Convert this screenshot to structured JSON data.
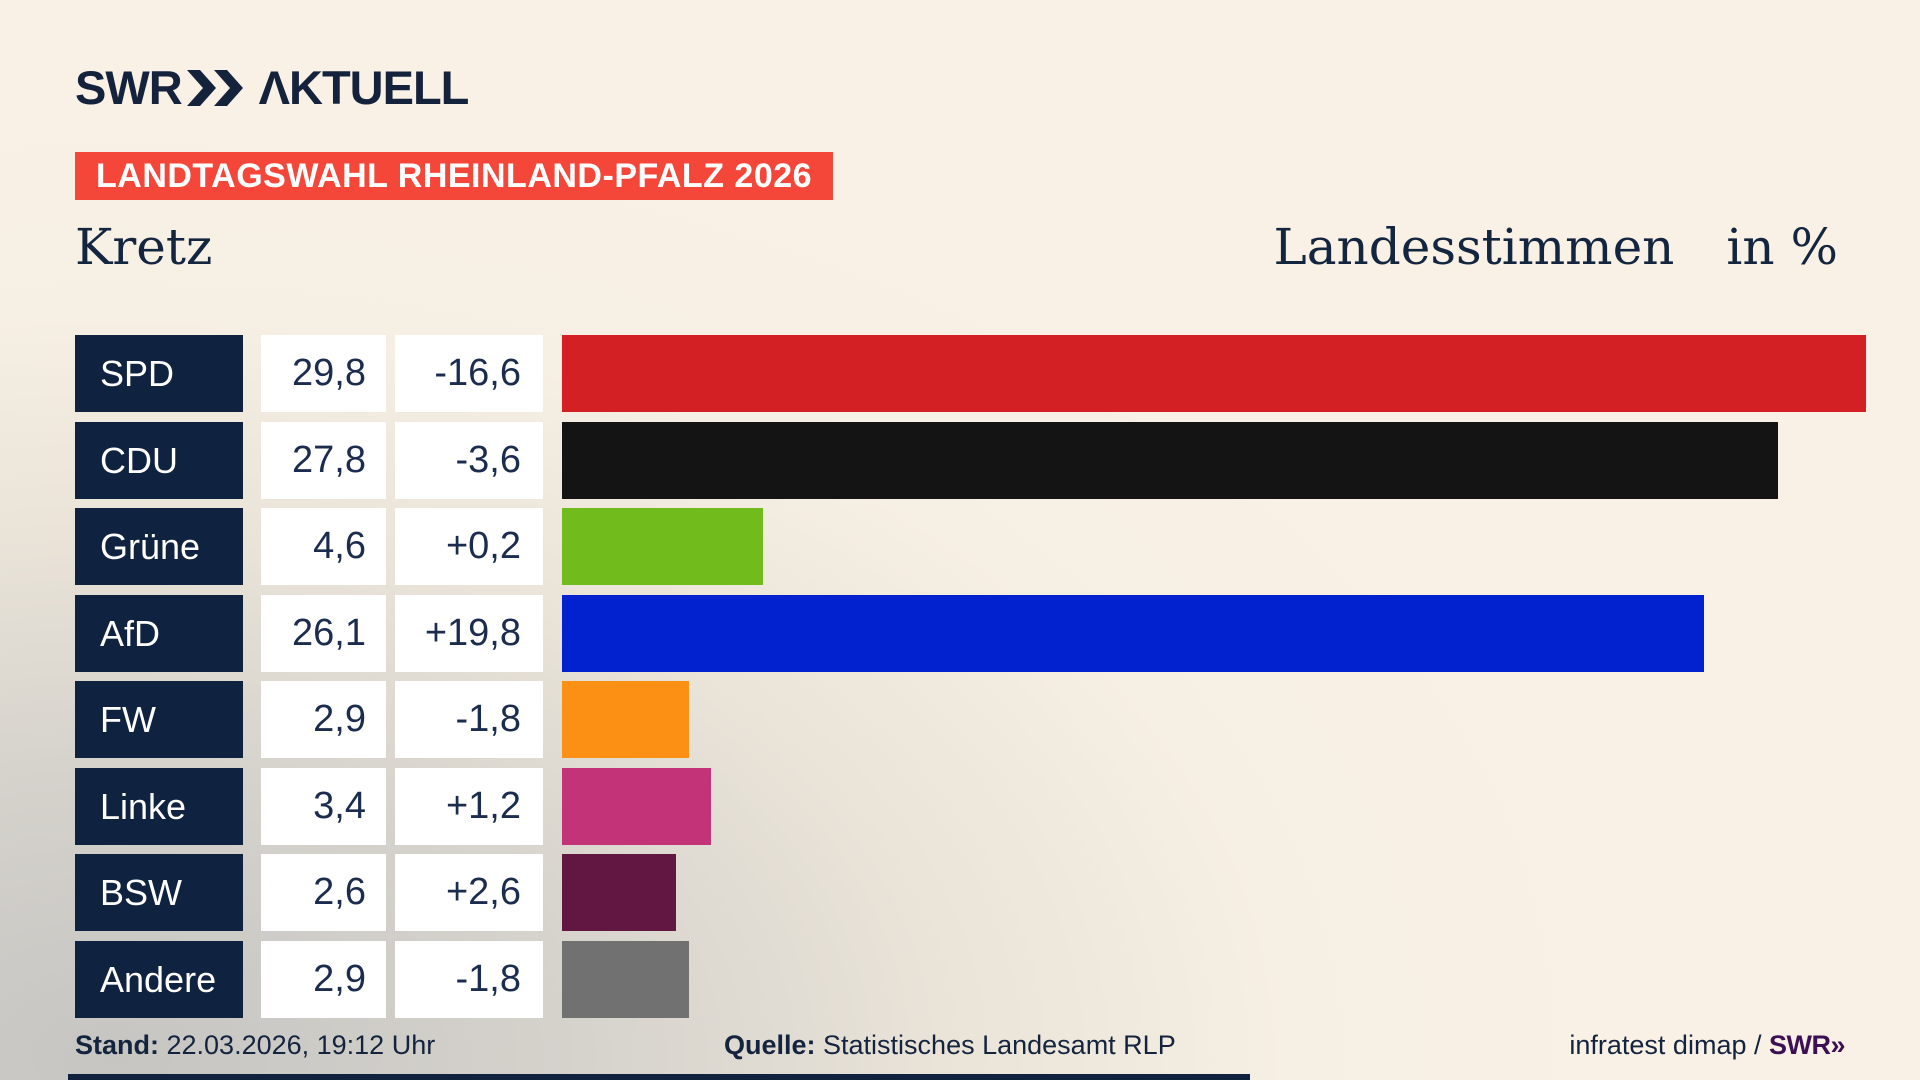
{
  "header": {
    "logo_swr": "SWR",
    "logo_aktuell": "ΛKTUELL",
    "banner": "LANDTAGSWAHL RHEINLAND-PFALZ 2026"
  },
  "title": {
    "left": "Kretz",
    "right_main": "Landesstimmen",
    "right_unit": "in %"
  },
  "chart_data": {
    "type": "bar",
    "orientation": "horizontal",
    "title": "Kretz",
    "value_axis_label": "Landesstimmen in %",
    "unit": "%",
    "xlim": [
      0,
      30
    ],
    "grid": false,
    "categories": [
      "SPD",
      "CDU",
      "Grüne",
      "AfD",
      "FW",
      "Linke",
      "BSW",
      "Andere"
    ],
    "values": [
      29.8,
      27.8,
      4.6,
      26.1,
      2.9,
      3.4,
      2.6,
      2.9
    ],
    "value_labels": [
      "29,8",
      "27,8",
      "4,6",
      "26,1",
      "2,9",
      "3,4",
      "2,6",
      "2,9"
    ],
    "change_labels": [
      "-16,6",
      "-3,6",
      "+0,2",
      "+19,8",
      "-1,8",
      "+1,2",
      "+2,6",
      "-1,8"
    ],
    "changes": [
      -16.6,
      -3.6,
      0.2,
      19.8,
      -1.8,
      1.2,
      2.6,
      -1.8
    ],
    "bar_colors": [
      "#d32024",
      "#141414",
      "#72bb1d",
      "#0122ce",
      "#fb9015",
      "#c23377",
      "#611741",
      "#717171"
    ]
  },
  "footer": {
    "stand_label": "Stand:",
    "stand_value": " 22.03.2026, 19:12 Uhr",
    "quelle_label": "Quelle:",
    "quelle_value": " Statistisches Landesamt RLP",
    "credit_text": "infratest dimap / ",
    "credit_logo": "SWR»"
  },
  "colors": {
    "background_cream": "#f9f1e5",
    "background_gray": "#c6c5c2",
    "navy": "#12233f",
    "label_box_navy": "#0f2240",
    "banner_red": "#f4473a",
    "value_box_white": "#ffffff",
    "swr_purple": "#3c1053"
  }
}
